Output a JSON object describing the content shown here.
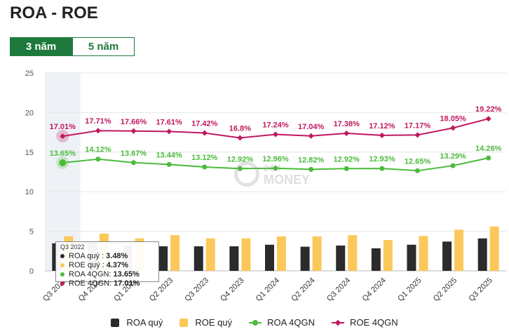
{
  "header": {
    "title": "ROA - ROE"
  },
  "tabs": [
    {
      "label": "3 năm",
      "active": true
    },
    {
      "label": "5 năm",
      "active": false
    }
  ],
  "colors": {
    "roa_q": "#2b2b2b",
    "roe_q": "#fcc85a",
    "roa_4q": "#4cbb3c",
    "roe_4q": "#c0185e",
    "accent": "#1e7a3c"
  },
  "watermark": {
    "line1": "24H",
    "line2": "MONEY"
  },
  "tooltip": {
    "title": "Q3 2022",
    "rows": [
      {
        "label": "ROA quý :",
        "value": "3.48%",
        "color": "#2b2b2b"
      },
      {
        "label": "ROE quý :",
        "value": "4.37%",
        "color": "#fcc85a"
      },
      {
        "label": "ROA 4QGN:",
        "value": "13.65%",
        "color": "#4cbb3c"
      },
      {
        "label": "ROE 4QGN:",
        "value": "17.01%",
        "color": "#c0185e"
      }
    ]
  },
  "chart_data": {
    "type": "bar",
    "categories": [
      "Q3 2022",
      "Q4 2022",
      "Q1 2023",
      "Q2 2023",
      "Q3 2023",
      "Q4 2023",
      "Q1 2024",
      "Q2 2024",
      "Q3 2024",
      "Q4 2024",
      "Q1 2025",
      "Q2 2025",
      "Q3 2025"
    ],
    "ylim": [
      0,
      25
    ],
    "yticks": [
      0,
      5,
      10,
      15,
      20,
      25
    ],
    "series": [
      {
        "name": "ROA quý",
        "kind": "bar",
        "values": [
          3.48,
          3.6,
          3.2,
          3.1,
          3.1,
          3.1,
          3.3,
          3.05,
          3.2,
          2.85,
          3.3,
          3.7,
          4.1
        ]
      },
      {
        "name": "ROE quý",
        "kind": "bar",
        "values": [
          4.37,
          4.7,
          4.1,
          4.5,
          4.1,
          4.1,
          4.35,
          4.35,
          4.5,
          3.9,
          4.4,
          5.2,
          5.6
        ]
      },
      {
        "name": "ROA 4QGN",
        "kind": "line",
        "values": [
          13.65,
          14.12,
          13.67,
          13.44,
          13.12,
          12.92,
          12.96,
          12.82,
          12.92,
          12.93,
          12.65,
          13.29,
          14.26
        ],
        "labels": [
          "13.65%",
          "14.12%",
          "13.67%",
          "13.44%",
          "13.12%",
          "12.92%",
          "12.96%",
          "12.82%",
          "12.92%",
          "12.93%",
          "12.65%",
          "13.29%",
          "14.26%"
        ]
      },
      {
        "name": "ROE 4QGN",
        "kind": "line",
        "values": [
          17.01,
          17.71,
          17.66,
          17.61,
          17.42,
          16.8,
          17.24,
          17.04,
          17.38,
          17.12,
          17.17,
          18.05,
          19.22
        ],
        "labels": [
          "17.01%",
          "17.71%",
          "17.66%",
          "17.61%",
          "17.42%",
          "16.8%",
          "17.24%",
          "17.04%",
          "17.38%",
          "17.12%",
          "17.17%",
          "18.05%",
          "19.22%"
        ]
      }
    ],
    "highlight_index": 0,
    "legend_position": "bottom"
  }
}
